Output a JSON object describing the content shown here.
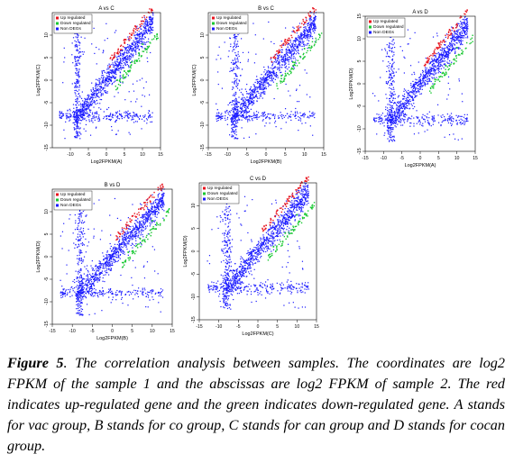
{
  "caption": {
    "label": "Figure 5",
    "text": ". The correlation analysis between samples. The coordinates are log2 FPKM of the sample 1 and the abscissas are log2 FPKM of sample 2. The red indicates up-regulated gene and the green indicates down-regulated gene. A stands for vac group, B stands for co group, C stands for can group and D stands for cocan group."
  },
  "colors": {
    "up": "#e8141e",
    "down": "#19c832",
    "non": "#1a1aff"
  },
  "chart_data": [
    {
      "type": "scatter",
      "title": "A vs C",
      "xlabel": "Log2FPKM(A)",
      "ylabel": "Log2FPKM(C)",
      "xlim": [
        -15,
        15
      ],
      "ylim": [
        -15,
        15
      ],
      "xticks": [
        "-10",
        "-5",
        "0",
        "5",
        "10",
        "15"
      ],
      "yticks": [
        "-15",
        "-10",
        "-5",
        "0",
        "5",
        "10"
      ],
      "legend": [
        "Up regulated",
        "Down regulated",
        "Non DEGs"
      ],
      "legend_position": "top-left",
      "series": [
        {
          "name": "Up regulated",
          "color": "up",
          "points": [
            [
              1,
              3
            ],
            [
              3,
              6
            ],
            [
              5,
              9
            ],
            [
              7,
              10
            ],
            [
              2,
              5
            ],
            [
              8,
              12
            ]
          ]
        },
        {
          "name": "Down regulated",
          "color": "down",
          "points": [
            [
              3,
              0
            ],
            [
              5,
              2
            ],
            [
              7,
              4
            ],
            [
              9,
              6
            ],
            [
              6,
              2
            ],
            [
              10,
              8
            ]
          ]
        },
        {
          "name": "Non DEGs",
          "color": "non",
          "points": [
            [
              -8,
              -8
            ],
            [
              0,
              0
            ],
            [
              5,
              5
            ],
            [
              10,
              10
            ],
            [
              -8,
              0
            ],
            [
              0,
              -8
            ]
          ]
        }
      ]
    },
    {
      "type": "scatter",
      "title": "B vs C",
      "xlabel": "Log2FPKM(B)",
      "ylabel": "Log2FPKM(C)",
      "xlim": [
        -15,
        15
      ],
      "ylim": [
        -15,
        15
      ],
      "xticks": [
        "-15",
        "-10",
        "-5",
        "0",
        "5",
        "10",
        "15"
      ],
      "yticks": [
        "-15",
        "-10",
        "-5",
        "0",
        "5",
        "10"
      ],
      "legend": [
        "Up regulated",
        "Down regulated",
        "Non DEGs"
      ],
      "legend_position": "top-left",
      "series": [
        {
          "name": "Up regulated",
          "color": "up",
          "points": [
            [
              2,
              5
            ],
            [
              5,
              9
            ],
            [
              8,
              11
            ]
          ]
        },
        {
          "name": "Down regulated",
          "color": "down",
          "points": [
            [
              4,
              1
            ],
            [
              7,
              4
            ],
            [
              10,
              7
            ]
          ]
        },
        {
          "name": "Non DEGs",
          "color": "non",
          "points": [
            [
              -8,
              -8
            ],
            [
              0,
              0
            ],
            [
              10,
              10
            ]
          ]
        }
      ]
    },
    {
      "type": "scatter",
      "title": "A vs D",
      "xlabel": "Log2FPKM(A)",
      "ylabel": "Log2FPKM(D)",
      "xlim": [
        -15,
        15
      ],
      "ylim": [
        -15,
        15
      ],
      "xticks": [
        "-15",
        "-10",
        "-5",
        "0",
        "5",
        "10",
        "15"
      ],
      "yticks": [
        "-15",
        "-10",
        "-5",
        "0",
        "5",
        "10",
        "15"
      ],
      "legend": [
        "Up regulated",
        "Down regulated",
        "Non DEGs"
      ],
      "legend_position": "top-left",
      "series": [
        {
          "name": "Up regulated",
          "color": "up",
          "points": [
            [
              2,
              5
            ],
            [
              5,
              9
            ],
            [
              8,
              12
            ]
          ]
        },
        {
          "name": "Down regulated",
          "color": "down",
          "points": [
            [
              4,
              1
            ],
            [
              7,
              4
            ],
            [
              10,
              8
            ]
          ]
        },
        {
          "name": "Non DEGs",
          "color": "non",
          "points": [
            [
              -8,
              -8
            ],
            [
              0,
              0
            ],
            [
              10,
              10
            ]
          ]
        }
      ]
    },
    {
      "type": "scatter",
      "title": "B vs D",
      "xlabel": "Log2FPKM(B)",
      "ylabel": "Log2FPKM(D)",
      "xlim": [
        -15,
        15
      ],
      "ylim": [
        -15,
        15
      ],
      "xticks": [
        "-15",
        "-10",
        "-5",
        "0",
        "5",
        "10",
        "15"
      ],
      "yticks": [
        "-15",
        "-10",
        "-5",
        "0",
        "5",
        "10"
      ],
      "legend": [
        "Up regulated",
        "Down regulated",
        "Non DEGs"
      ],
      "legend_position": "top-left",
      "series": [
        {
          "name": "Up regulated",
          "color": "up",
          "points": [
            [
              2,
              5
            ],
            [
              5,
              9
            ],
            [
              8,
              12
            ]
          ]
        },
        {
          "name": "Down regulated",
          "color": "down",
          "points": [
            [
              4,
              1
            ],
            [
              7,
              4
            ],
            [
              10,
              8
            ]
          ]
        },
        {
          "name": "Non DEGs",
          "color": "non",
          "points": [
            [
              -8,
              -8
            ],
            [
              0,
              0
            ],
            [
              10,
              10
            ]
          ]
        }
      ]
    },
    {
      "type": "scatter",
      "title": "C vs D",
      "xlabel": "Log2FPKM(C)",
      "ylabel": "Log2FPKM(D)",
      "xlim": [
        -15,
        15
      ],
      "ylim": [
        -15,
        15
      ],
      "xticks": [
        "-15",
        "-10",
        "-5",
        "0",
        "5",
        "10",
        "15"
      ],
      "yticks": [
        "-15",
        "-10",
        "-5",
        "0",
        "5",
        "10"
      ],
      "legend": [
        "Up regulated",
        "Down regulated",
        "Non DEGs"
      ],
      "legend_position": "top-left",
      "series": [
        {
          "name": "Up regulated",
          "color": "up",
          "points": [
            [
              2,
              5
            ],
            [
              5,
              9
            ],
            [
              8,
              12
            ]
          ]
        },
        {
          "name": "Down regulated",
          "color": "down",
          "points": [
            [
              4,
              1
            ],
            [
              7,
              4
            ],
            [
              10,
              8
            ]
          ]
        },
        {
          "name": "Non DEGs",
          "color": "non",
          "points": [
            [
              -8,
              -8
            ],
            [
              0,
              0
            ],
            [
              10,
              10
            ]
          ]
        }
      ]
    }
  ]
}
